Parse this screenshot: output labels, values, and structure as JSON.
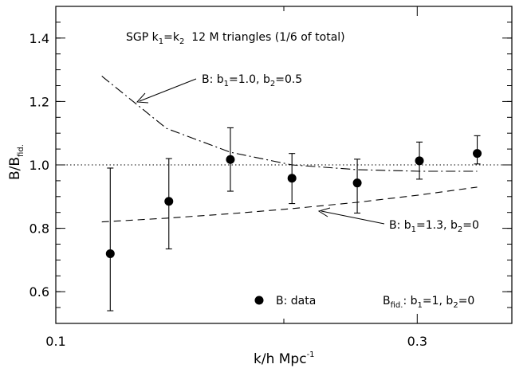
{
  "chart_data": {
    "type": "scatter",
    "title": "SGP  k1=k2  12 M triangles (1/6 of total)",
    "xlabel": "k/h Mpc^-1",
    "ylabel": "B/B_fid.",
    "xscale": "log",
    "xlim": [
      0.1,
      0.4
    ],
    "ylim": [
      0.5,
      1.5
    ],
    "x_ticks": [
      {
        "value": 0.1,
        "label": "0.1"
      },
      {
        "value": 0.3,
        "label": "0.3"
      }
    ],
    "x_minor_ticks": [
      0.2,
      0.4
    ],
    "y_ticks": [
      {
        "value": 0.6,
        "label": "0.6"
      },
      {
        "value": 0.8,
        "label": "0.8"
      },
      {
        "value": 1.0,
        "label": "1.0"
      },
      {
        "value": 1.2,
        "label": "1.2"
      },
      {
        "value": 1.4,
        "label": "1.4"
      }
    ],
    "y_minor_step": 0.05,
    "reference_line": {
      "y": 1.0,
      "style": "dotted"
    },
    "series": [
      {
        "name": "B: data",
        "style": "points-errorbars",
        "points": [
          {
            "x": 0.118,
            "y": 0.72,
            "ylo": 0.54,
            "yhi": 0.99
          },
          {
            "x": 0.141,
            "y": 0.885,
            "ylo": 0.735,
            "yhi": 1.02
          },
          {
            "x": 0.17,
            "y": 1.017,
            "ylo": 0.917,
            "yhi": 1.117
          },
          {
            "x": 0.205,
            "y": 0.958,
            "ylo": 0.878,
            "yhi": 1.036
          },
          {
            "x": 0.25,
            "y": 0.943,
            "ylo": 0.848,
            "yhi": 1.018
          },
          {
            "x": 0.302,
            "y": 1.013,
            "ylo": 0.955,
            "yhi": 1.072
          },
          {
            "x": 0.36,
            "y": 1.036,
            "ylo": 1.003,
            "yhi": 1.092
          }
        ]
      },
      {
        "name": "B: b1=1.0, b2=0.5",
        "style": "dash-dot",
        "x": [
          0.115,
          0.14,
          0.17,
          0.205,
          0.25,
          0.302,
          0.36
        ],
        "y": [
          1.28,
          1.115,
          1.04,
          1.0,
          0.985,
          0.98,
          0.98
        ]
      },
      {
        "name": "B: b1=1.3, b2=0",
        "style": "dashed",
        "x": [
          0.115,
          0.14,
          0.17,
          0.205,
          0.25,
          0.302,
          0.36
        ],
        "y": [
          0.82,
          0.832,
          0.846,
          0.862,
          0.882,
          0.905,
          0.93
        ]
      }
    ],
    "annotations": {
      "title_parts": {
        "a": "SGP  k",
        "s1": "1",
        "b": "=k",
        "s2": "2",
        "c": "  12 M triangles (1/6 of total)"
      },
      "label_b1_10": {
        "a": "B: b",
        "s1": "1",
        "b": "=1.0, b",
        "s2": "2",
        "c": "=0.5"
      },
      "label_b1_13": {
        "a": "B: b",
        "s1": "1",
        "b": "=1.3, b",
        "s2": "2",
        "c": "=0"
      },
      "legend_data": "B: data",
      "fid_note": {
        "a": "B",
        "s0": "fid.",
        "b": ": b",
        "s1": "1",
        "c": "=1, b",
        "s2": "2",
        "d": "=0"
      },
      "xlabel_parts": {
        "a": "k/h Mpc",
        "sup": "-1"
      },
      "ylabel_parts": {
        "a": "B/B",
        "sub": "fid."
      }
    }
  }
}
